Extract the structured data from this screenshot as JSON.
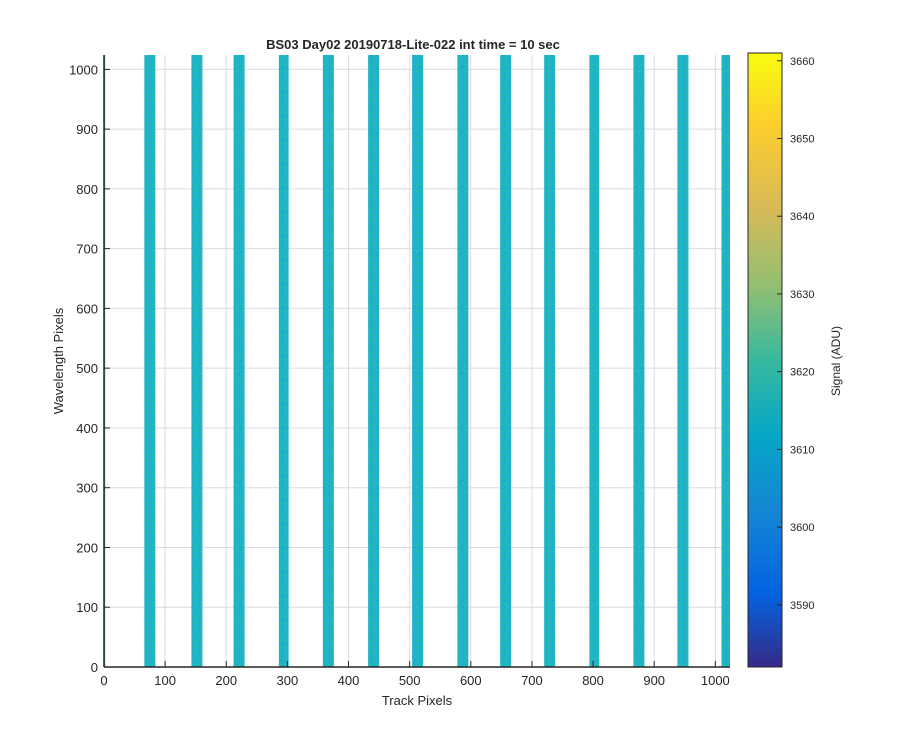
{
  "chart_data": {
    "type": "heatmap",
    "title": "BS03 Day02 20190718-Lite-022 int time = 10 sec",
    "xlabel": "Track Pixels",
    "ylabel": "Wavelength Pixels",
    "xlim": [
      0,
      1024
    ],
    "ylim": [
      0,
      1024
    ],
    "xticks": [
      0,
      100,
      200,
      300,
      400,
      500,
      600,
      700,
      800,
      900,
      1000
    ],
    "yticks": [
      0,
      100,
      200,
      300,
      400,
      500,
      600,
      700,
      800,
      900,
      1000
    ],
    "grid": true,
    "colormap": "parula",
    "colorbar": {
      "label": "Signal (ADU)",
      "range": [
        3582,
        3661
      ],
      "ticks": [
        3590,
        3600,
        3610,
        3620,
        3630,
        3640,
        3650,
        3660
      ]
    },
    "background_value": "blank",
    "typical_signal": 3617,
    "stripes_x_ranges": [
      [
        0,
        2
      ],
      [
        66,
        84
      ],
      [
        143,
        161
      ],
      [
        212,
        230
      ],
      [
        286,
        302
      ],
      [
        358,
        376
      ],
      [
        432,
        450
      ],
      [
        504,
        522
      ],
      [
        578,
        596
      ],
      [
        648,
        666
      ],
      [
        720,
        738
      ],
      [
        794,
        810
      ],
      [
        866,
        884
      ],
      [
        938,
        956
      ],
      [
        1010,
        1024
      ]
    ]
  },
  "colors": {
    "stripe_base": "#1fb3c6",
    "grid": "#dcdcdc",
    "axis": "#262626"
  }
}
